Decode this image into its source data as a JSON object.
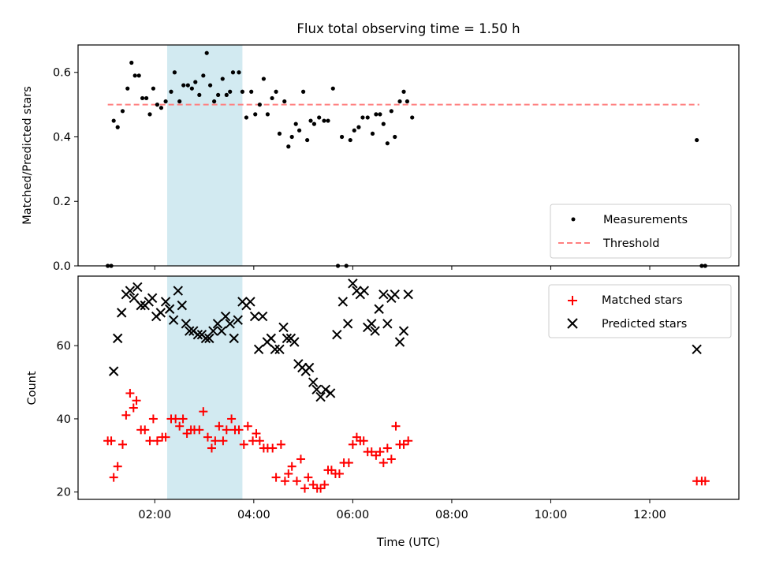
{
  "figure": {
    "title": "Flux total observing time = 1.50 h"
  },
  "chart_data": [
    {
      "type": "scatter",
      "panel": "top",
      "ylabel": "Matched/Predicted stars",
      "xlim": [
        0.45,
        13.8
      ],
      "ylim": [
        0.0,
        0.685
      ],
      "yticks": [
        0.0,
        0.2,
        0.4,
        0.6
      ],
      "ytick_labels": [
        "0.0",
        "0.2",
        "0.4",
        "0.6"
      ],
      "shaded_span": [
        2.25,
        3.77
      ],
      "shaded_color": "#add8e6",
      "legend": {
        "placement": "lower-right",
        "items": [
          {
            "label": "Measurements",
            "marker": "dot",
            "color": "#000000"
          },
          {
            "label": "Threshold",
            "marker": "dashed-line",
            "color": "#ff7f7f"
          }
        ]
      },
      "threshold": {
        "y": 0.5,
        "x": [
          1.05,
          13.0
        ],
        "color": "#ff7f7f"
      },
      "series": [
        {
          "name": "Measurements",
          "color": "#000000",
          "points": [
            [
              1.05,
              0.0
            ],
            [
              1.12,
              0.0
            ],
            [
              1.17,
              0.45
            ],
            [
              1.25,
              0.43
            ],
            [
              1.35,
              0.48
            ],
            [
              1.45,
              0.55
            ],
            [
              1.53,
              0.63
            ],
            [
              1.6,
              0.59
            ],
            [
              1.68,
              0.59
            ],
            [
              1.75,
              0.52
            ],
            [
              1.83,
              0.52
            ],
            [
              1.9,
              0.47
            ],
            [
              1.97,
              0.55
            ],
            [
              2.05,
              0.5
            ],
            [
              2.13,
              0.49
            ],
            [
              2.22,
              0.51
            ],
            [
              2.33,
              0.54
            ],
            [
              2.4,
              0.6
            ],
            [
              2.5,
              0.51
            ],
            [
              2.58,
              0.56
            ],
            [
              2.67,
              0.56
            ],
            [
              2.75,
              0.55
            ],
            [
              2.82,
              0.57
            ],
            [
              2.9,
              0.53
            ],
            [
              2.98,
              0.59
            ],
            [
              3.05,
              0.66
            ],
            [
              3.12,
              0.56
            ],
            [
              3.2,
              0.51
            ],
            [
              3.28,
              0.53
            ],
            [
              3.37,
              0.58
            ],
            [
              3.45,
              0.53
            ],
            [
              3.52,
              0.54
            ],
            [
              3.58,
              0.6
            ],
            [
              3.7,
              0.6
            ],
            [
              3.77,
              0.54
            ],
            [
              3.85,
              0.46
            ],
            [
              3.95,
              0.54
            ],
            [
              4.03,
              0.47
            ],
            [
              4.12,
              0.5
            ],
            [
              4.2,
              0.58
            ],
            [
              4.28,
              0.47
            ],
            [
              4.37,
              0.52
            ],
            [
              4.45,
              0.54
            ],
            [
              4.52,
              0.41
            ],
            [
              4.62,
              0.51
            ],
            [
              4.7,
              0.37
            ],
            [
              4.77,
              0.4
            ],
            [
              4.85,
              0.44
            ],
            [
              4.92,
              0.42
            ],
            [
              5.0,
              0.54
            ],
            [
              5.08,
              0.39
            ],
            [
              5.15,
              0.45
            ],
            [
              5.22,
              0.44
            ],
            [
              5.32,
              0.46
            ],
            [
              5.42,
              0.45
            ],
            [
              5.5,
              0.45
            ],
            [
              5.6,
              0.55
            ],
            [
              5.7,
              0.0
            ],
            [
              5.78,
              0.4
            ],
            [
              5.87,
              0.0
            ],
            [
              5.95,
              0.39
            ],
            [
              6.03,
              0.42
            ],
            [
              6.12,
              0.43
            ],
            [
              6.2,
              0.46
            ],
            [
              6.3,
              0.46
            ],
            [
              6.4,
              0.41
            ],
            [
              6.47,
              0.47
            ],
            [
              6.55,
              0.47
            ],
            [
              6.62,
              0.44
            ],
            [
              6.7,
              0.38
            ],
            [
              6.78,
              0.48
            ],
            [
              6.85,
              0.4
            ],
            [
              6.95,
              0.51
            ],
            [
              7.03,
              0.54
            ],
            [
              7.1,
              0.51
            ],
            [
              7.2,
              0.46
            ],
            [
              12.95,
              0.39
            ],
            [
              13.05,
              0.0
            ],
            [
              13.12,
              0.0
            ]
          ]
        }
      ]
    },
    {
      "type": "scatter",
      "panel": "bottom",
      "xlabel": "Time (UTC)",
      "ylabel": "Count",
      "xlim": [
        0.45,
        13.8
      ],
      "ylim": [
        18.0,
        79.0
      ],
      "yticks": [
        20,
        40,
        60
      ],
      "ytick_labels": [
        "20",
        "40",
        "60"
      ],
      "xticks": [
        2,
        4,
        6,
        8,
        10,
        12
      ],
      "xtick_labels": [
        "02:00",
        "04:00",
        "06:00",
        "08:00",
        "10:00",
        "12:00"
      ],
      "shaded_span": [
        2.25,
        3.77
      ],
      "shaded_color": "#add8e6",
      "legend": {
        "placement": "upper-right",
        "items": [
          {
            "label": "Matched stars",
            "marker": "plus",
            "color": "#ff0000"
          },
          {
            "label": "Predicted stars",
            "marker": "x",
            "color": "#000000"
          }
        ]
      },
      "series": [
        {
          "name": "Matched stars",
          "marker": "plus",
          "color": "#ff0000",
          "points": [
            [
              1.05,
              34
            ],
            [
              1.12,
              34
            ],
            [
              1.17,
              24
            ],
            [
              1.25,
              27
            ],
            [
              1.35,
              33
            ],
            [
              1.42,
              41
            ],
            [
              1.5,
              47
            ],
            [
              1.57,
              43
            ],
            [
              1.63,
              45
            ],
            [
              1.72,
              37
            ],
            [
              1.8,
              37
            ],
            [
              1.9,
              34
            ],
            [
              1.97,
              40
            ],
            [
              2.05,
              34
            ],
            [
              2.15,
              35
            ],
            [
              2.22,
              35
            ],
            [
              2.33,
              40
            ],
            [
              2.42,
              40
            ],
            [
              2.5,
              38
            ],
            [
              2.57,
              40
            ],
            [
              2.65,
              36
            ],
            [
              2.73,
              37
            ],
            [
              2.8,
              37
            ],
            [
              2.9,
              37
            ],
            [
              2.98,
              42
            ],
            [
              3.07,
              35
            ],
            [
              3.15,
              32
            ],
            [
              3.22,
              34
            ],
            [
              3.3,
              38
            ],
            [
              3.38,
              34
            ],
            [
              3.45,
              37
            ],
            [
              3.55,
              40
            ],
            [
              3.62,
              37
            ],
            [
              3.7,
              37
            ],
            [
              3.8,
              33
            ],
            [
              3.88,
              38
            ],
            [
              3.98,
              34
            ],
            [
              4.05,
              36
            ],
            [
              4.12,
              34
            ],
            [
              4.2,
              32
            ],
            [
              4.28,
              32
            ],
            [
              4.38,
              32
            ],
            [
              4.45,
              24
            ],
            [
              4.55,
              33
            ],
            [
              4.63,
              23
            ],
            [
              4.7,
              25
            ],
            [
              4.77,
              27
            ],
            [
              4.87,
              23
            ],
            [
              4.95,
              29
            ],
            [
              5.03,
              21
            ],
            [
              5.1,
              24
            ],
            [
              5.2,
              22
            ],
            [
              5.28,
              21
            ],
            [
              5.35,
              21
            ],
            [
              5.43,
              22
            ],
            [
              5.5,
              26
            ],
            [
              5.57,
              26
            ],
            [
              5.65,
              25
            ],
            [
              5.73,
              25
            ],
            [
              5.82,
              28
            ],
            [
              5.92,
              28
            ],
            [
              6.0,
              33
            ],
            [
              6.08,
              35
            ],
            [
              6.15,
              34
            ],
            [
              6.22,
              34
            ],
            [
              6.3,
              31
            ],
            [
              6.38,
              31
            ],
            [
              6.47,
              30
            ],
            [
              6.55,
              31
            ],
            [
              6.62,
              28
            ],
            [
              6.7,
              32
            ],
            [
              6.78,
              29
            ],
            [
              6.87,
              38
            ],
            [
              6.95,
              33
            ],
            [
              7.03,
              33
            ],
            [
              7.12,
              34
            ],
            [
              12.95,
              23
            ],
            [
              13.05,
              23
            ],
            [
              13.12,
              23
            ]
          ]
        },
        {
          "name": "Predicted stars",
          "marker": "x",
          "color": "#000000",
          "points": [
            [
              1.17,
              53
            ],
            [
              1.25,
              62
            ],
            [
              1.33,
              69
            ],
            [
              1.42,
              74
            ],
            [
              1.5,
              75
            ],
            [
              1.58,
              73
            ],
            [
              1.65,
              76
            ],
            [
              1.72,
              71
            ],
            [
              1.8,
              71
            ],
            [
              1.88,
              72
            ],
            [
              1.95,
              73
            ],
            [
              2.03,
              68
            ],
            [
              2.12,
              69
            ],
            [
              2.22,
              72
            ],
            [
              2.3,
              70
            ],
            [
              2.38,
              67
            ],
            [
              2.47,
              75
            ],
            [
              2.55,
              71
            ],
            [
              2.63,
              66
            ],
            [
              2.7,
              64
            ],
            [
              2.78,
              64
            ],
            [
              2.87,
              63
            ],
            [
              2.95,
              63
            ],
            [
              3.03,
              62
            ],
            [
              3.1,
              62
            ],
            [
              3.18,
              64
            ],
            [
              3.27,
              66
            ],
            [
              3.35,
              64
            ],
            [
              3.43,
              68
            ],
            [
              3.52,
              66
            ],
            [
              3.6,
              62
            ],
            [
              3.68,
              67
            ],
            [
              3.77,
              72
            ],
            [
              3.85,
              71
            ],
            [
              3.93,
              72
            ],
            [
              4.02,
              68
            ],
            [
              4.1,
              59
            ],
            [
              4.18,
              68
            ],
            [
              4.27,
              61
            ],
            [
              4.35,
              62
            ],
            [
              4.43,
              59
            ],
            [
              4.52,
              59
            ],
            [
              4.6,
              65
            ],
            [
              4.67,
              62
            ],
            [
              4.75,
              62
            ],
            [
              4.82,
              61
            ],
            [
              4.9,
              55
            ],
            [
              4.98,
              54
            ],
            [
              5.05,
              53
            ],
            [
              5.12,
              54
            ],
            [
              5.2,
              50
            ],
            [
              5.27,
              48
            ],
            [
              5.35,
              46
            ],
            [
              5.45,
              48
            ],
            [
              5.55,
              47
            ],
            [
              5.68,
              63
            ],
            [
              5.8,
              72
            ],
            [
              5.9,
              66
            ],
            [
              6.0,
              77
            ],
            [
              6.08,
              75
            ],
            [
              6.15,
              74
            ],
            [
              6.23,
              75
            ],
            [
              6.3,
              65
            ],
            [
              6.38,
              66
            ],
            [
              6.45,
              64
            ],
            [
              6.53,
              70
            ],
            [
              6.62,
              74
            ],
            [
              6.7,
              66
            ],
            [
              6.78,
              73
            ],
            [
              6.85,
              74
            ],
            [
              6.95,
              61
            ],
            [
              7.03,
              64
            ],
            [
              7.12,
              74
            ],
            [
              12.95,
              59
            ]
          ]
        }
      ]
    }
  ]
}
